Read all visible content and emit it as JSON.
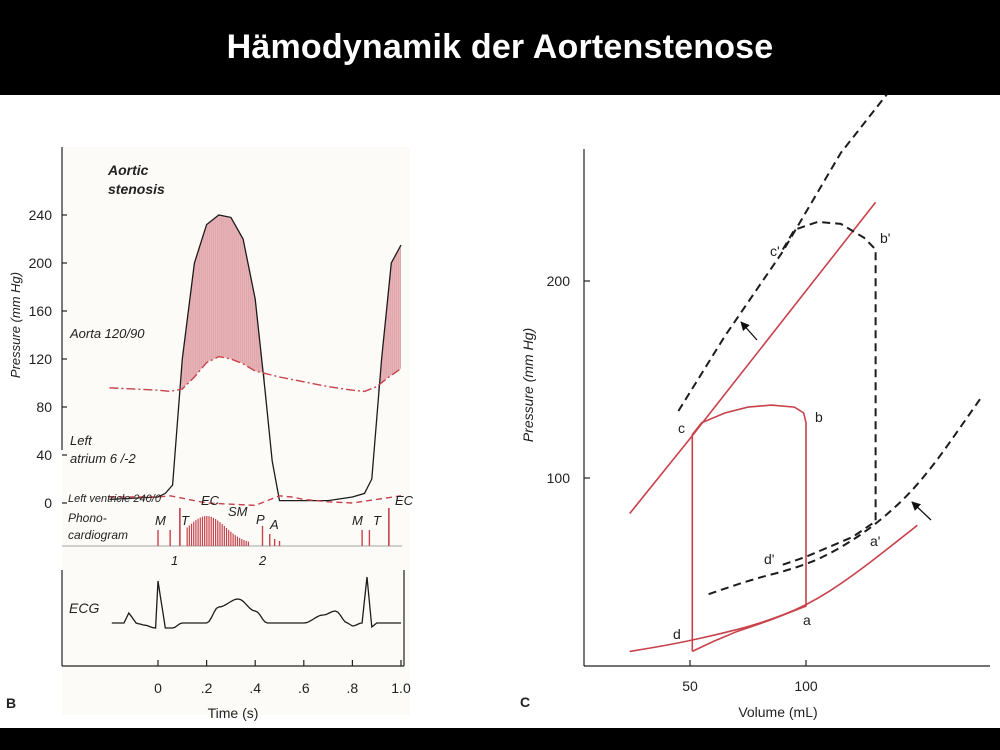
{
  "slide": {
    "title": "Hämodynamik der Aortenstenose"
  },
  "colors": {
    "red": "#c8414b",
    "fill": "#e7b4b8",
    "dark": "#1c1c1c"
  },
  "panel_b": {
    "letter": "B",
    "ylabel": "Pressure (mm Hg)",
    "xlabel": "Time (s)",
    "y_ticks": [
      "240",
      "200",
      "160",
      "120",
      "80",
      "40",
      "0"
    ],
    "x_ticks": [
      "0",
      ".2",
      ".4",
      ".6",
      ".8",
      "1.0"
    ],
    "heading_line1": "Aortic",
    "heading_line2": "stenosis",
    "aorta_label": "Aorta 120/90",
    "atrium_line1": "Left",
    "atrium_line2": "atrium 6 /-2",
    "ventricle_label": "Left ventricle 240/0",
    "phono_line1": "Phono-",
    "phono_line2": "cardiogram",
    "markers": {
      "m1": "M",
      "t1": "T",
      "ec1": "EC",
      "sm": "SM",
      "p": "P",
      "a": "A",
      "m2": "M",
      "t2": "T",
      "ec2": "EC"
    },
    "heart_sounds": {
      "s1": "1",
      "s2": "2"
    },
    "ecg_label": "ECG"
  },
  "panel_c": {
    "letter": "C",
    "ylabel": "Pressure (mm Hg)",
    "xlabel": "Volume (mL)",
    "y_ticks": [
      "200",
      "100"
    ],
    "x_ticks": [
      "50",
      "100"
    ],
    "points": {
      "a": "a",
      "b": "b",
      "c": "c",
      "d": "d",
      "a2": "a'",
      "b2": "b'",
      "c2": "c'",
      "d2": "d'"
    }
  },
  "chart_data": [
    {
      "type": "line",
      "xlabel": "Time (s)",
      "ylabel": "Pressure (mm Hg)",
      "xlim": [
        -0.2,
        1.0
      ],
      "ylim": [
        0,
        240
      ],
      "grid": false,
      "series": [
        {
          "name": "Left ventricle 240/0",
          "x": [
            -0.2,
            0.0,
            0.03,
            0.06,
            0.1,
            0.15,
            0.2,
            0.25,
            0.3,
            0.35,
            0.4,
            0.44,
            0.47,
            0.5,
            0.6,
            0.7,
            0.8,
            0.85,
            0.88,
            0.92,
            0.96,
            1.0
          ],
          "y": [
            3,
            5,
            8,
            15,
            120,
            200,
            232,
            240,
            238,
            220,
            170,
            95,
            35,
            2,
            2,
            2,
            5,
            8,
            20,
            120,
            200,
            215
          ]
        },
        {
          "name": "Aorta 120/90",
          "x": [
            -0.2,
            0.0,
            0.05,
            0.1,
            0.15,
            0.2,
            0.25,
            0.3,
            0.35,
            0.4,
            0.5,
            0.6,
            0.7,
            0.8,
            0.85,
            0.9,
            0.95,
            1.0
          ],
          "y": [
            96,
            94,
            93,
            95,
            105,
            117,
            122,
            120,
            116,
            110,
            105,
            101,
            97,
            94,
            93,
            97,
            105,
            112
          ]
        },
        {
          "name": "Left atrium 6 /-2",
          "x": [
            -0.2,
            0.0,
            0.05,
            0.1,
            0.2,
            0.3,
            0.4,
            0.45,
            0.5,
            0.55,
            0.6,
            0.7,
            0.8,
            0.9,
            1.0
          ],
          "y": [
            5,
            5,
            6,
            4,
            0,
            -1,
            -2,
            2,
            6,
            5,
            3,
            1,
            0,
            3,
            6
          ]
        }
      ]
    },
    {
      "type": "line",
      "xlabel": "Volume (mL)",
      "ylabel": "Pressure (mm Hg)",
      "xlim": [
        12,
        175
      ],
      "ylim": [
        8,
        270
      ],
      "grid": false,
      "series": [
        {
          "x": [
            51,
            51,
            55,
            65,
            75,
            85,
            95,
            99,
            100,
            100,
            100,
            85,
            70,
            60,
            51
          ],
          "y": [
            12,
            122,
            128,
            133,
            136,
            137,
            136,
            133,
            128,
            35,
            35,
            28,
            22,
            17,
            12
          ]
        },
        {
          "x": [
            90,
            90,
            95,
            105,
            115,
            125,
            130,
            130,
            130,
            120,
            110,
            100,
            90
          ],
          "y": [
            216,
            216,
            226,
            230,
            229,
            222,
            216,
            78,
            78,
            70,
            65,
            60,
            56
          ]
        },
        {
          "x": [
            24,
            50,
            90,
            130
          ],
          "y": [
            82,
            120,
            180,
            240
          ]
        },
        {
          "x": [
            45,
            65,
            90,
            115,
            135
          ],
          "y": [
            134,
            172,
            215,
            265,
            295
          ]
        },
        {
          "x": [
            24,
            40,
            60,
            80,
            100,
            120,
            148
          ],
          "y": [
            12,
            15,
            20,
            26,
            35,
            50,
            76
          ]
        },
        {
          "x": [
            58,
            75,
            95,
            110,
            130,
            150,
            175
          ],
          "y": [
            41,
            48,
            54,
            61,
            76,
            98,
            140
          ]
        }
      ]
    }
  ]
}
